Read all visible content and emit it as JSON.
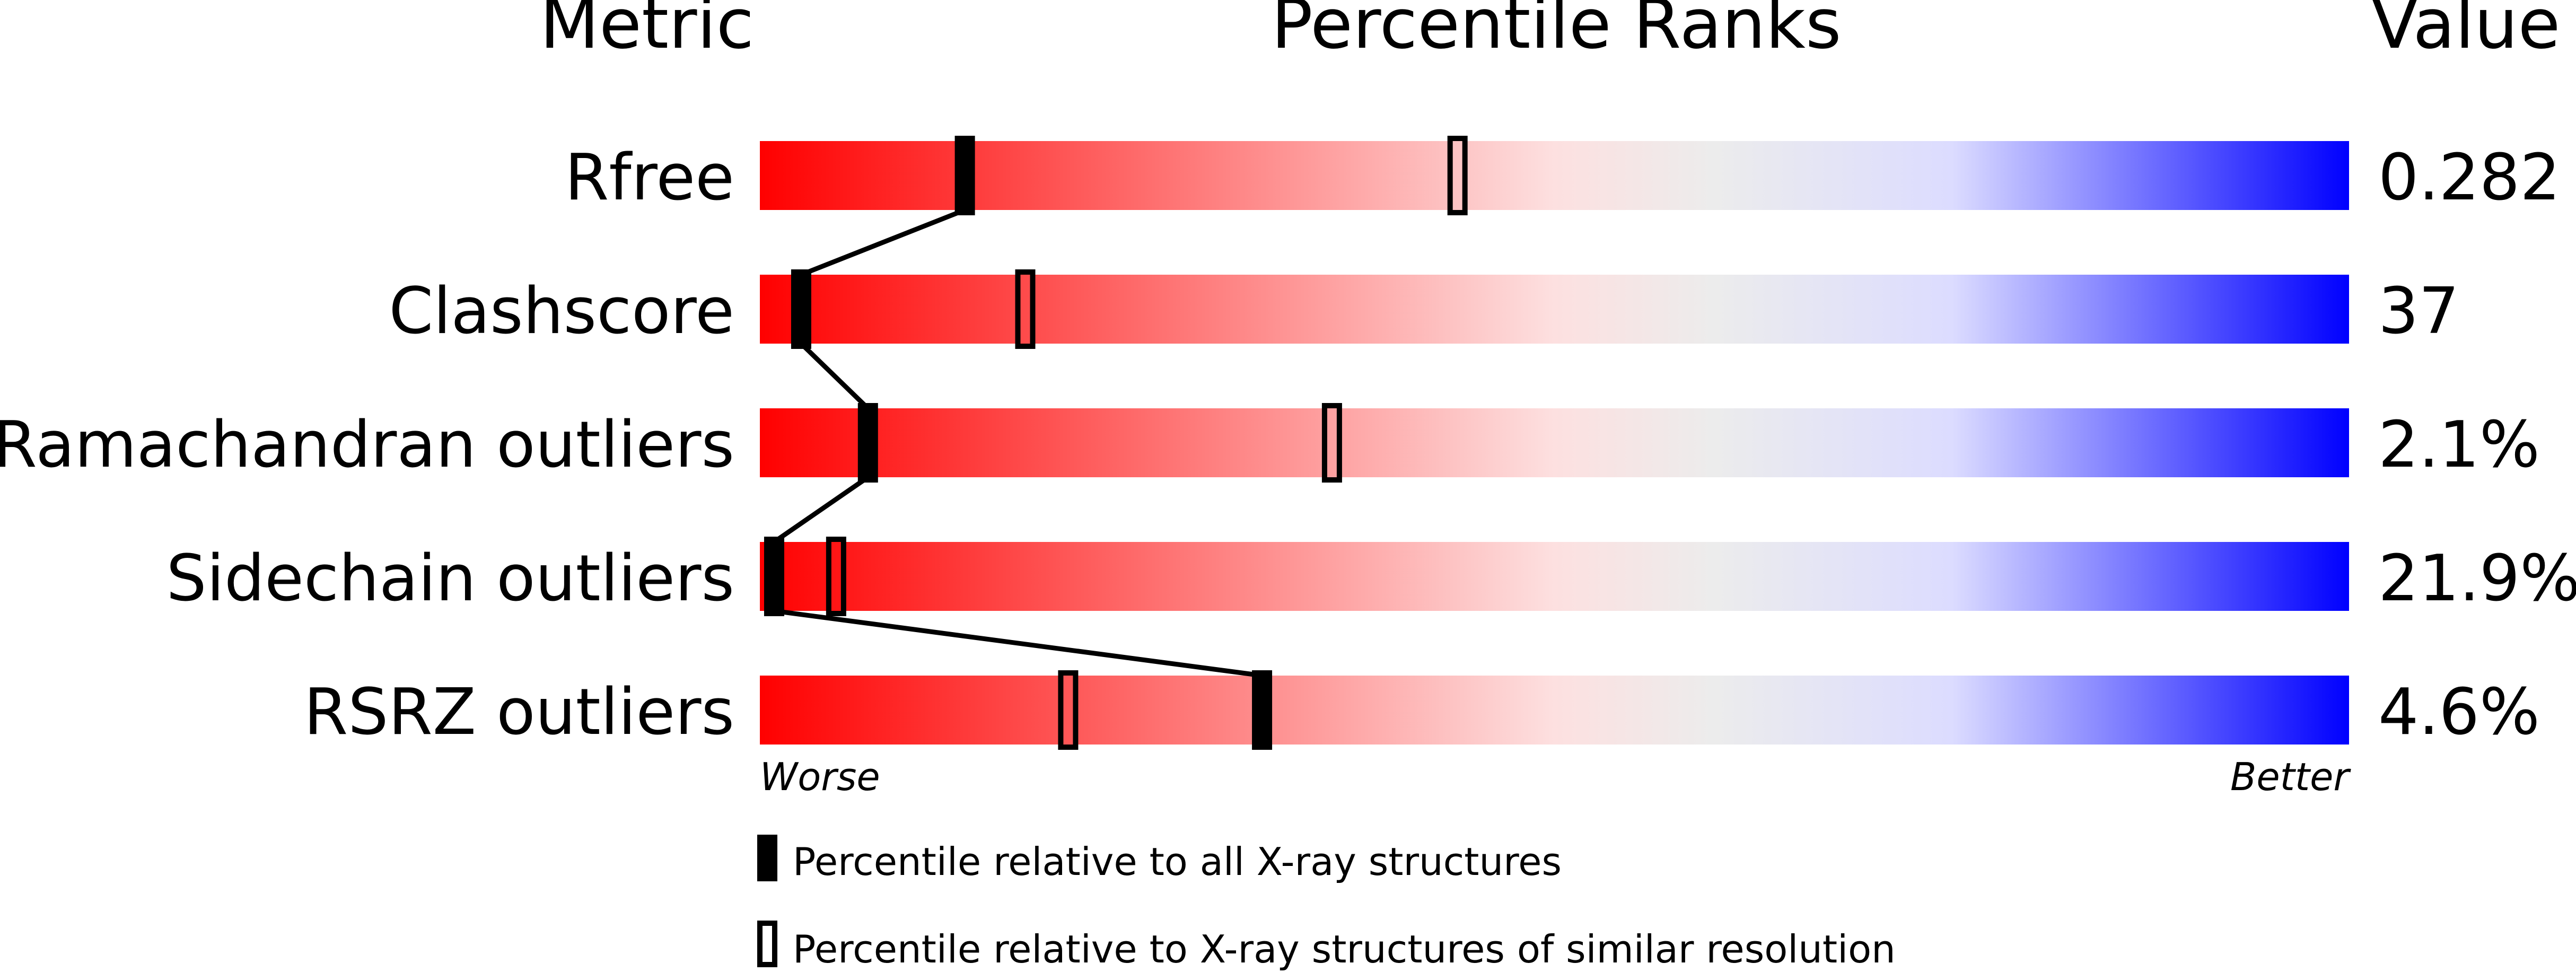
{
  "chart_data": {
    "type": "bar",
    "headers": {
      "metric": "Metric",
      "ranks": "Percentile Ranks",
      "value": "Value"
    },
    "xlim": [
      0,
      100
    ],
    "axis_labels": {
      "left": "Worse",
      "right": "Better"
    },
    "gradient_colors": [
      "#ff0000",
      "#fde0e0",
      "#ececec",
      "#dcdcff",
      "#0000ff"
    ],
    "rows": [
      {
        "metric": "Rfree",
        "value": "0.282",
        "percentile_all": 12.9,
        "percentile_similar": 43.9
      },
      {
        "metric": "Clashscore",
        "value": "37",
        "percentile_all": 2.6,
        "percentile_similar": 16.7
      },
      {
        "metric": "Ramachandran outliers",
        "value": "2.1%",
        "percentile_all": 6.8,
        "percentile_similar": 36.0
      },
      {
        "metric": "Sidechain outliers",
        "value": "21.9%",
        "percentile_all": 0.9,
        "percentile_similar": 4.8
      },
      {
        "metric": "RSRZ outliers",
        "value": "4.6%",
        "percentile_all": 31.6,
        "percentile_similar": 19.4
      }
    ],
    "legend": [
      {
        "marker": "filled",
        "label": "Percentile relative to all X-ray structures"
      },
      {
        "marker": "open",
        "label": "Percentile relative to X-ray structures of similar resolution"
      }
    ]
  }
}
